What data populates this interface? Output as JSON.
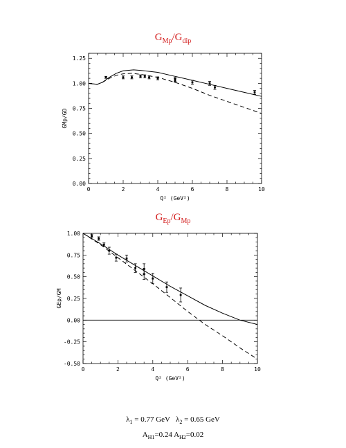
{
  "titles": {
    "top_main": "G",
    "top_sub1": "Mp",
    "top_sep": "/G",
    "top_sub2": "dip",
    "bottom_main": "G",
    "bottom_sub1": "Ep",
    "bottom_sep": "/G",
    "bottom_sub2": "Mp"
  },
  "caption": {
    "lambda1": "λ",
    "lambda1_sub": "1",
    "lambda1_val": " = 0.77 GeV",
    "lambda2": "λ",
    "lambda2_sub": "2",
    "lambda2_val": " = 0.65 GeV",
    "a1": "A",
    "a1_sub": "H1",
    "a1_val": "=0.24 ",
    "a2": "A",
    "a2_sub": "H2",
    "a2_val": "=0.02"
  },
  "chart_data": [
    {
      "type": "line",
      "title": "GMp/Gdip",
      "xlabel": "Q² (GeV²)",
      "ylabel": "GMp/GD",
      "xlim": [
        0,
        10
      ],
      "ylim": [
        0,
        1.3
      ],
      "xticks": [
        0,
        2,
        4,
        6,
        8,
        10
      ],
      "xticklabels": [
        "0",
        "2",
        "4",
        "6",
        "8",
        "10"
      ],
      "yticks": [
        0,
        0.25,
        0.5,
        0.75,
        1.0,
        1.25
      ],
      "yticklabels": [
        "0.00",
        "0.25",
        "0.50",
        "0.75",
        "1.00",
        "1.25"
      ],
      "series": [
        {
          "style": "solid",
          "x": [
            0,
            0.5,
            0.8,
            1.2,
            1.6,
            2.0,
            2.6,
            3.0,
            4.0,
            5.0,
            6.0,
            7.0,
            8.0,
            9.0,
            10.0
          ],
          "y": [
            1.0,
            0.99,
            1.01,
            1.06,
            1.1,
            1.125,
            1.135,
            1.13,
            1.11,
            1.07,
            1.03,
            0.99,
            0.95,
            0.91,
            0.87
          ]
        },
        {
          "style": "dashed",
          "x": [
            0,
            0.5,
            0.8,
            1.2,
            1.6,
            2.0,
            2.5,
            3.0,
            4.0,
            5.0,
            6.0,
            7.0,
            8.0,
            9.0,
            10.0
          ],
          "y": [
            1.0,
            0.99,
            1.01,
            1.05,
            1.08,
            1.095,
            1.1,
            1.09,
            1.06,
            1.01,
            0.95,
            0.88,
            0.82,
            0.76,
            0.7
          ]
        },
        {
          "style": "points",
          "x": [
            1.0,
            2.0,
            2.5,
            3.0,
            3.25,
            3.5,
            4.0,
            5.0,
            5.0,
            6.0,
            7.0,
            7.3,
            9.6
          ],
          "y": [
            1.06,
            1.06,
            1.06,
            1.07,
            1.07,
            1.06,
            1.05,
            1.04,
            1.03,
            1.01,
            1.0,
            0.96,
            0.91
          ],
          "err": [
            0.01,
            0.015,
            0.015,
            0.015,
            0.015,
            0.015,
            0.015,
            0.02,
            0.02,
            0.02,
            0.02,
            0.02,
            0.02
          ]
        }
      ]
    },
    {
      "type": "line",
      "title": "GEp/GMp",
      "xlabel": "Q² (GeV²)",
      "ylabel": "GEp/GM",
      "xlim": [
        0,
        10
      ],
      "ylim": [
        -0.5,
        1.0
      ],
      "xticks": [
        0,
        2,
        4,
        6,
        8,
        10
      ],
      "xticklabels": [
        "0",
        "2",
        "4",
        "6",
        "8",
        "10"
      ],
      "yticks": [
        -0.5,
        -0.25,
        0,
        0.25,
        0.5,
        0.75,
        1.0
      ],
      "yticklabels": [
        "-0.50",
        "-0.25",
        "0.00",
        "0.25",
        "0.50",
        "0.75",
        "1.00"
      ],
      "series": [
        {
          "style": "solid",
          "x": [
            0,
            1,
            2,
            3,
            4,
            5,
            6,
            7,
            8,
            9,
            10
          ],
          "y": [
            1.0,
            0.88,
            0.75,
            0.63,
            0.51,
            0.39,
            0.28,
            0.17,
            0.08,
            0.0,
            -0.05
          ]
        },
        {
          "style": "dashed",
          "x": [
            0,
            1,
            2,
            3,
            4,
            5,
            6,
            7,
            8,
            9,
            10
          ],
          "y": [
            1.0,
            0.87,
            0.72,
            0.57,
            0.42,
            0.26,
            0.1,
            -0.05,
            -0.18,
            -0.32,
            -0.45
          ]
        },
        {
          "style": "zero-line",
          "x": [
            0,
            10
          ],
          "y": [
            0,
            0
          ]
        },
        {
          "style": "points",
          "x": [
            0.5,
            0.9,
            1.2,
            1.5,
            1.9,
            2.5,
            3.0,
            3.5,
            3.5,
            4.0,
            4.8,
            5.6
          ],
          "y": [
            0.97,
            0.94,
            0.87,
            0.8,
            0.72,
            0.71,
            0.6,
            0.59,
            0.53,
            0.48,
            0.38,
            0.29
          ],
          "err": [
            0.02,
            0.02,
            0.02,
            0.04,
            0.04,
            0.04,
            0.05,
            0.06,
            0.06,
            0.06,
            0.06,
            0.08
          ]
        }
      ]
    }
  ]
}
